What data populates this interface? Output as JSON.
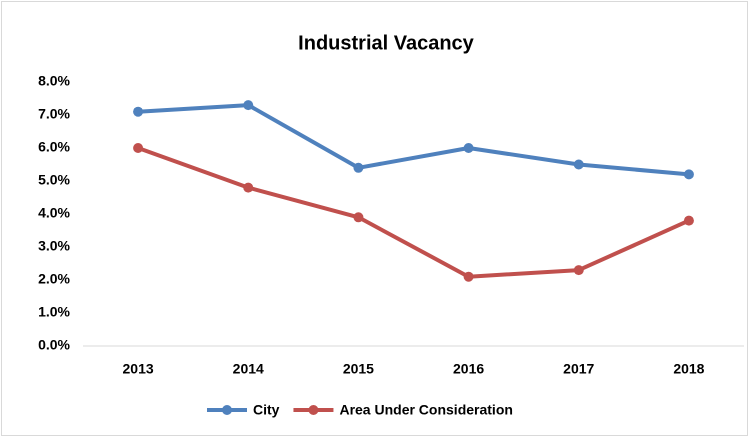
{
  "chart_data": {
    "type": "line",
    "title": "Industrial Vacancy",
    "categories": [
      "2013",
      "2014",
      "2015",
      "2016",
      "2017",
      "2018"
    ],
    "series": [
      {
        "name": "City",
        "color": "#4f81bd",
        "values": [
          7.1,
          7.3,
          5.4,
          6.0,
          5.5,
          5.2
        ]
      },
      {
        "name": "Area Under Consideration",
        "color": "#c0504d",
        "values": [
          6.0,
          4.8,
          3.9,
          2.1,
          2.3,
          3.8
        ]
      }
    ],
    "ylim": [
      0,
      8
    ],
    "yticks": [
      {
        "value": 0,
        "label": "0.0%"
      },
      {
        "value": 1,
        "label": "1.0%"
      },
      {
        "value": 2,
        "label": "2.0%"
      },
      {
        "value": 3,
        "label": "3.0%"
      },
      {
        "value": 4,
        "label": "4.0%"
      },
      {
        "value": 5,
        "label": "5.0%"
      },
      {
        "value": 6,
        "label": "6.0%"
      },
      {
        "value": 7,
        "label": "7.0%"
      },
      {
        "value": 8,
        "label": "8.0%"
      }
    ],
    "grid": false,
    "legend": "bottom"
  }
}
